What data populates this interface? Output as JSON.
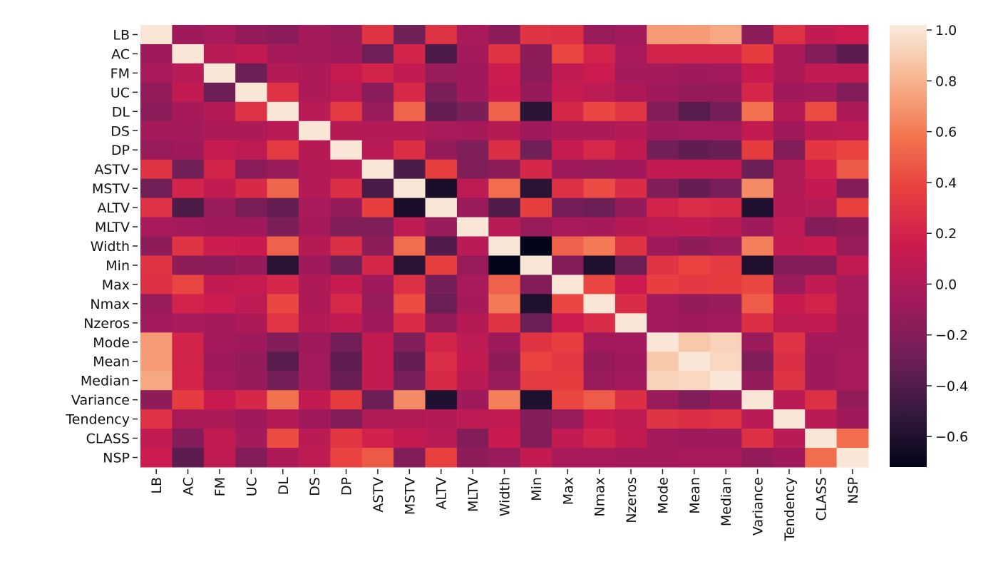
{
  "chart_data": {
    "type": "heatmap",
    "title": "",
    "colormap": "rocket",
    "vmin": -0.72,
    "vmax": 1.02,
    "labels": [
      "LB",
      "AC",
      "FM",
      "UC",
      "DL",
      "DS",
      "DP",
      "ASTV",
      "MSTV",
      "ALTV",
      "MLTV",
      "Width",
      "Min",
      "Max",
      "Nmax",
      "Nzeros",
      "Mode",
      "Mean",
      "Median",
      "Variance",
      "Tendency",
      "CLASS",
      "NSP"
    ],
    "values_upper_triangle": [
      [
        1,
        -0.08,
        -0.03,
        -0.13,
        -0.16,
        -0.05,
        -0.1,
        0.3,
        -0.28,
        0.29,
        -0.03,
        -0.15,
        0.3,
        0.28,
        -0.1,
        -0.06,
        0.71,
        0.72,
        0.76,
        -0.15,
        0.29,
        0.1,
        0.15
      ],
      [
        1,
        0.05,
        0.1,
        -0.04,
        -0.05,
        -0.08,
        -0.28,
        0.21,
        -0.42,
        -0.05,
        0.3,
        -0.15,
        0.39,
        0.2,
        -0.03,
        0.2,
        0.2,
        0.2,
        0.35,
        -0.02,
        -0.2,
        -0.36
      ],
      [
        1,
        -0.3,
        0.03,
        0.0,
        0.12,
        0.2,
        0.1,
        -0.1,
        -0.07,
        0.16,
        -0.16,
        0.1,
        0.15,
        -0.05,
        -0.05,
        -0.08,
        -0.06,
        0.13,
        -0.01,
        0.1,
        0.09
      ],
      [
        1,
        0.29,
        0.0,
        0.07,
        -0.17,
        0.24,
        -0.24,
        -0.07,
        0.14,
        -0.11,
        0.12,
        0.08,
        0.0,
        -0.08,
        -0.12,
        -0.11,
        0.22,
        -0.07,
        -0.05,
        -0.2
      ],
      [
        1,
        0.05,
        0.34,
        -0.1,
        0.52,
        -0.33,
        -0.23,
        0.5,
        -0.55,
        0.22,
        0.4,
        0.31,
        -0.2,
        -0.37,
        -0.26,
        0.57,
        0.03,
        0.42,
        0.0
      ],
      [
        1,
        0.04,
        0.03,
        0.03,
        -0.03,
        -0.04,
        0.04,
        -0.07,
        0.0,
        0.0,
        0.03,
        -0.08,
        -0.06,
        -0.06,
        0.1,
        -0.07,
        0.06,
        0.08
      ],
      [
        1,
        0.05,
        0.27,
        -0.12,
        -0.22,
        0.27,
        -0.28,
        0.12,
        0.23,
        0.1,
        -0.27,
        -0.35,
        -0.31,
        0.35,
        -0.2,
        0.32,
        0.38
      ],
      [
        1,
        -0.43,
        0.36,
        -0.22,
        -0.15,
        0.22,
        -0.08,
        -0.1,
        -0.07,
        0.1,
        0.1,
        0.1,
        -0.3,
        0.01,
        0.19,
        0.47
      ],
      [
        1,
        -0.62,
        0.07,
        0.55,
        -0.56,
        0.28,
        0.42,
        0.25,
        -0.22,
        -0.33,
        -0.25,
        0.66,
        0.02,
        0.11,
        -0.2
      ],
      [
        1,
        -0.1,
        -0.4,
        0.36,
        -0.26,
        -0.3,
        -0.12,
        0.2,
        0.26,
        0.24,
        -0.59,
        0.03,
        0.05,
        0.37
      ],
      [
        1,
        0.05,
        -0.1,
        -0.03,
        -0.04,
        0.04,
        0.07,
        0.1,
        0.06,
        -0.08,
        0.07,
        -0.2,
        -0.15
      ],
      [
        1,
        -0.72,
        0.5,
        0.6,
        0.3,
        -0.08,
        -0.15,
        -0.1,
        0.62,
        0.1,
        0.14,
        -0.1
      ],
      [
        1,
        -0.2,
        -0.6,
        -0.3,
        0.3,
        0.38,
        0.34,
        -0.6,
        -0.2,
        -0.2,
        0.1
      ],
      [
        1,
        0.4,
        0.15,
        0.36,
        0.33,
        0.35,
        0.4,
        -0.1,
        0.1,
        -0.03
      ],
      [
        1,
        0.25,
        -0.06,
        -0.12,
        -0.1,
        0.48,
        0.13,
        0.2,
        -0.03
      ],
      [
        1,
        -0.06,
        -0.07,
        -0.06,
        0.27,
        0.07,
        0.1,
        -0.05
      ],
      [
        1,
        0.88,
        0.92,
        -0.1,
        0.3,
        -0.05,
        -0.05
      ],
      [
        1,
        0.94,
        -0.22,
        0.27,
        -0.08,
        -0.03
      ],
      [
        1,
        -0.12,
        0.3,
        -0.08,
        -0.03
      ],
      [
        1,
        0.06,
        0.28,
        -0.13
      ],
      [
        1,
        0.06,
        -0.07
      ],
      [
        1,
        0.55
      ],
      [
        1
      ]
    ],
    "colorbar": {
      "ticks": [
        1.0,
        0.8,
        0.6,
        0.4,
        0.2,
        0.0,
        -0.2,
        -0.4,
        -0.6
      ],
      "tick_labels": [
        "1.0",
        "0.8",
        "0.6",
        "0.4",
        "0.2",
        "0.0",
        "−0.2",
        "−0.4",
        "−0.6"
      ]
    },
    "colors": [
      "#03051a",
      "#36193e",
      "#701f57",
      "#a11a5b",
      "#cb1b4f",
      "#e83f3f",
      "#f37651",
      "#f6b48e",
      "#faebdd"
    ]
  }
}
